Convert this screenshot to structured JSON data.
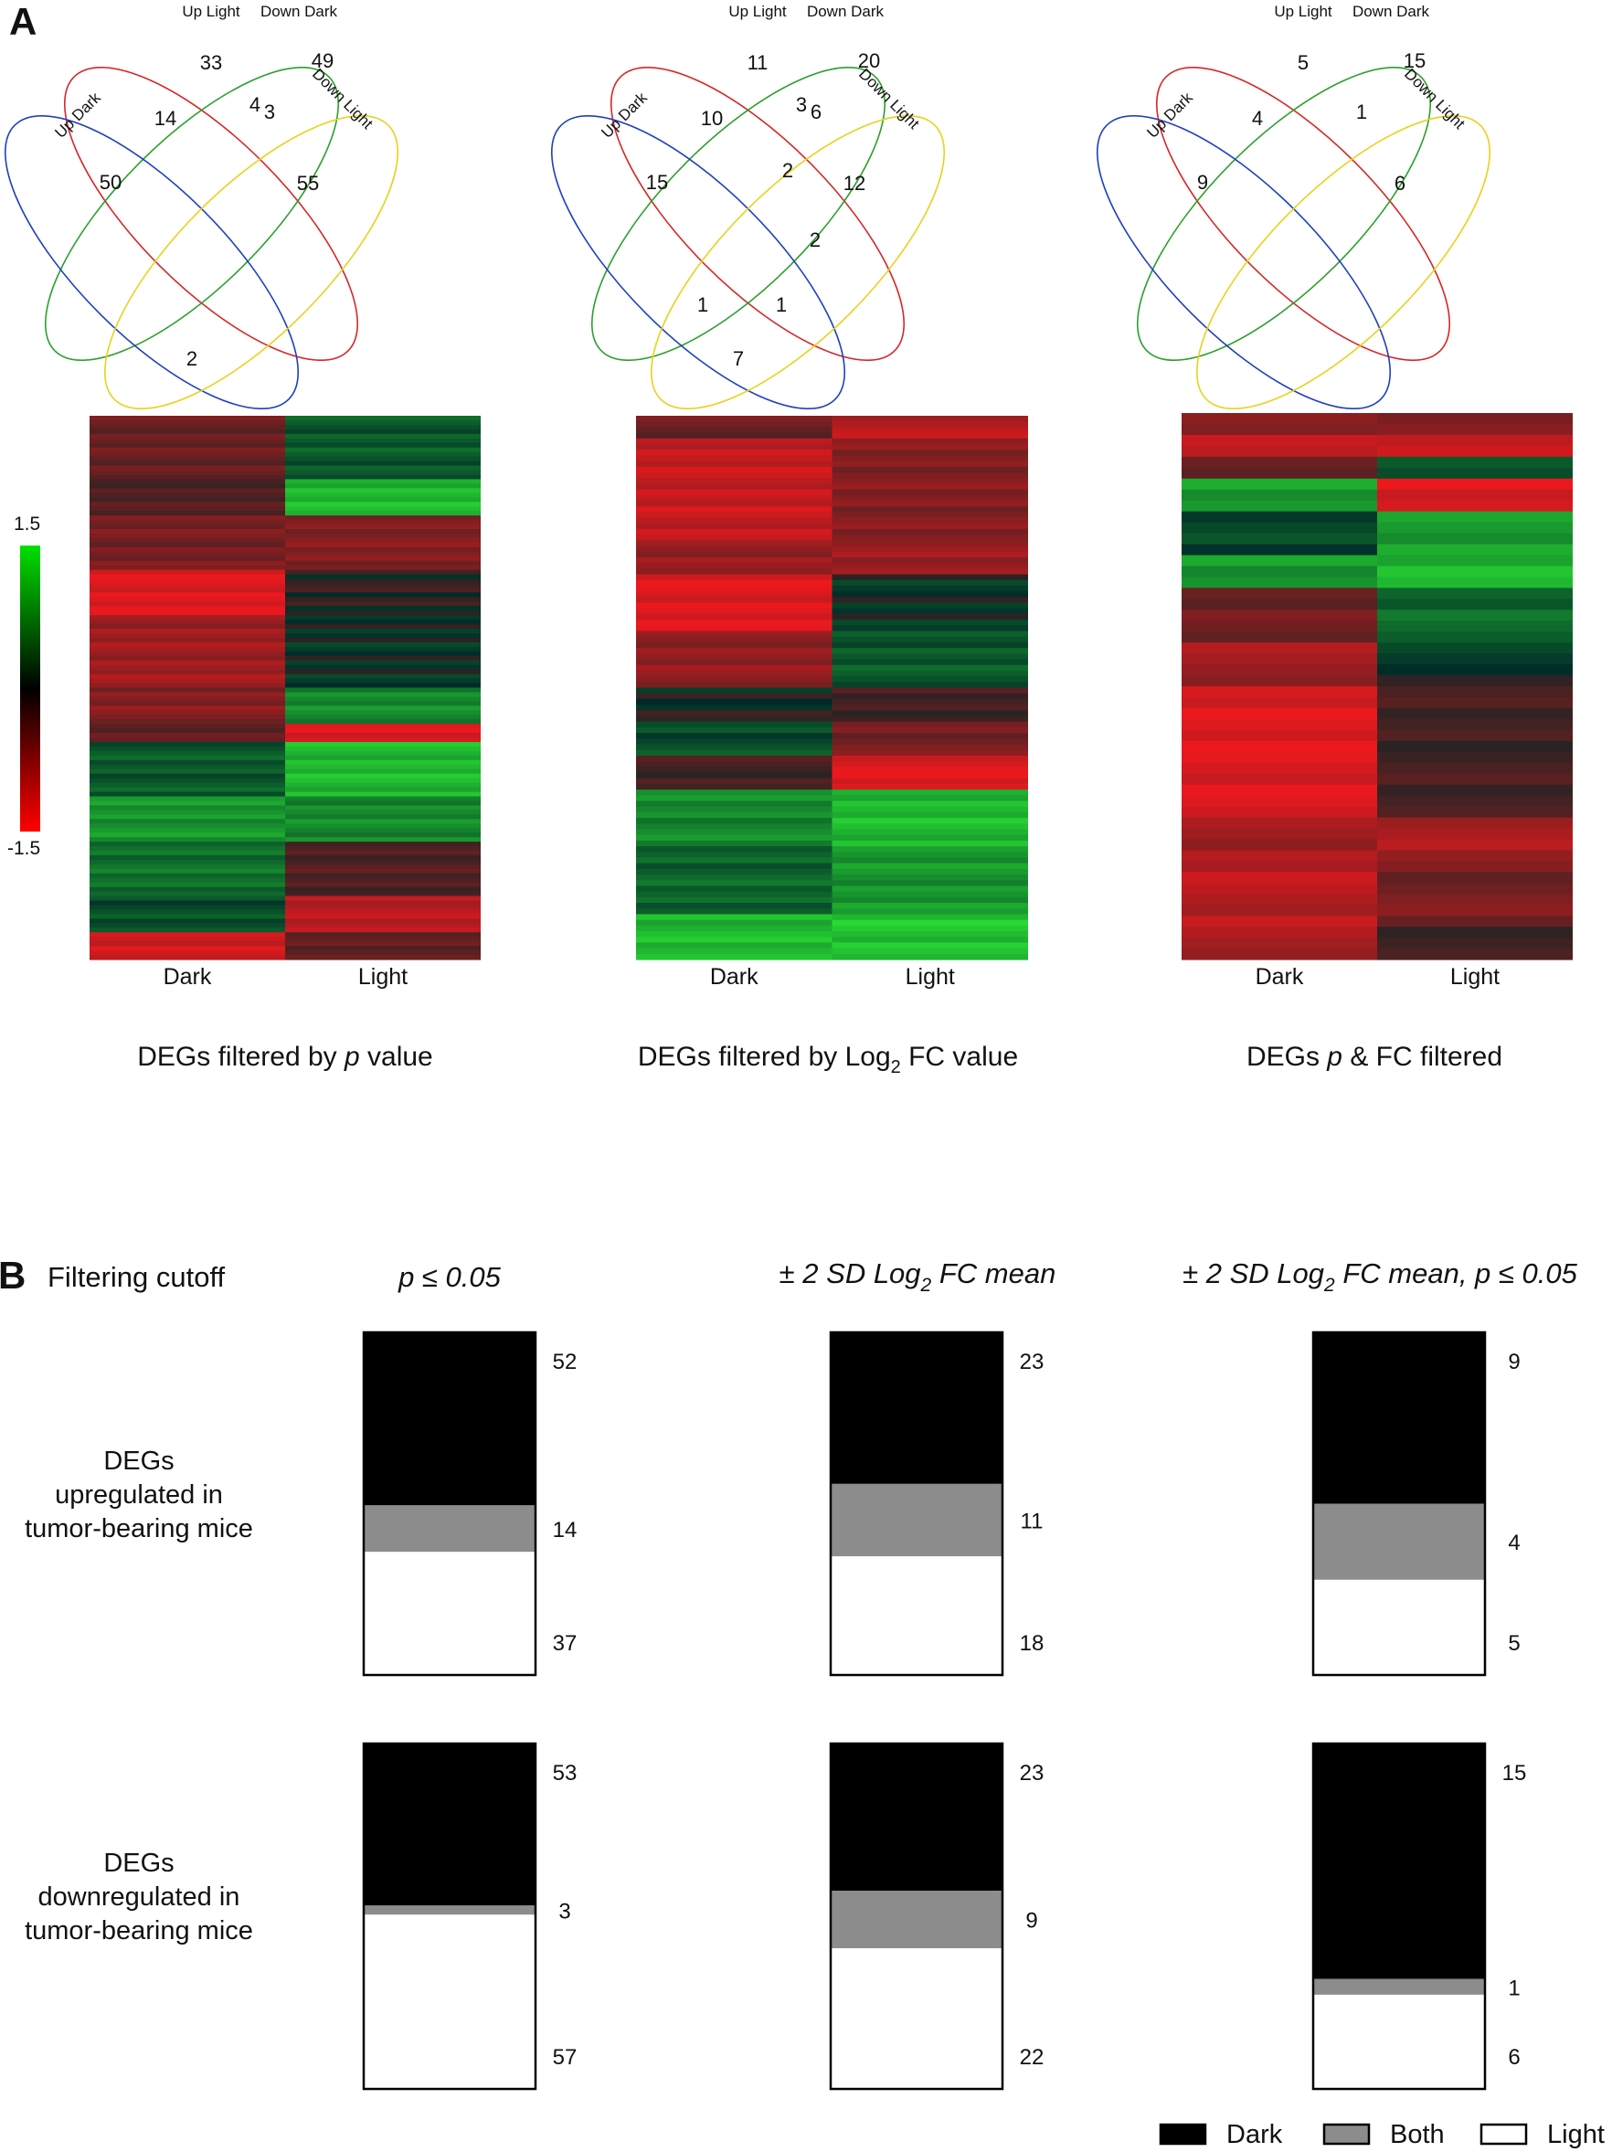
{
  "panel_a_label": "A",
  "panel_b_label": "B",
  "venn_set_labels": [
    "Up Light",
    "Down Dark",
    "Up Dark",
    "Down Light"
  ],
  "heatmap_columns": [
    "Dark",
    "Light"
  ],
  "colorbar": {
    "max_label": "1.5",
    "min_label": "-1.5",
    "max_value": 1.5,
    "min_value": -1.5,
    "colors": [
      "#00e000",
      "#000000",
      "#ff0000"
    ]
  },
  "panel_a": [
    {
      "caption_pre": "DEGs filtered by ",
      "caption_em": "p",
      "caption_post": " value",
      "caption_sub": ""
    },
    {
      "caption_pre": "DEGs filtered by Log",
      "caption_em": "",
      "caption_post": " FC value",
      "caption_sub": "2"
    },
    {
      "caption_pre": "DEGs ",
      "caption_em": "p",
      "caption_post": " & FC filtered",
      "caption_sub": ""
    }
  ],
  "panel_b": {
    "row_header": "Filtering cutoff",
    "row_labels": [
      [
        "DEGs",
        "upregulated in",
        "tumor-bearing mice"
      ],
      [
        "DEGs",
        "downregulated in",
        "tumor-bearing mice"
      ]
    ],
    "column_headers": [
      {
        "pre": "p ≤ 0.05",
        "sub": "",
        "post": ""
      },
      {
        "pre": "± 2 SD Log",
        "sub": "2",
        "post": " FC mean"
      },
      {
        "pre": "± 2 SD Log",
        "sub": "2",
        "post": " FC mean, p ≤ 0.05"
      }
    ],
    "legend": [
      "Dark",
      "Both",
      "Light"
    ]
  },
  "chart_data": [
    {
      "type": "venn",
      "title": "DEGs filtered by p value",
      "sets": [
        "Up Light",
        "Down Dark",
        "Up Dark",
        "Down Light"
      ],
      "regions": [
        {
          "sets": [
            "Up Light"
          ],
          "value": 33
        },
        {
          "sets": [
            "Down Dark"
          ],
          "value": 49
        },
        {
          "sets": [
            "Up Dark"
          ],
          "value": 50
        },
        {
          "sets": [
            "Down Light"
          ],
          "value": 55
        },
        {
          "sets": [
            "Up Dark",
            "Up Light"
          ],
          "value": 14
        },
        {
          "sets": [
            "Up Light",
            "Down Dark"
          ],
          "value": 4
        },
        {
          "sets": [
            "Down Dark",
            "Down Light"
          ],
          "value": 3
        },
        {
          "sets": [
            "Up Dark",
            "Down Light"
          ],
          "value": 2
        }
      ]
    },
    {
      "type": "venn",
      "title": "DEGs filtered by Log2 FC value",
      "sets": [
        "Up Light",
        "Down Dark",
        "Up Dark",
        "Down Light"
      ],
      "regions": [
        {
          "sets": [
            "Up Light"
          ],
          "value": 11
        },
        {
          "sets": [
            "Down Dark"
          ],
          "value": 20
        },
        {
          "sets": [
            "Up Dark"
          ],
          "value": 15
        },
        {
          "sets": [
            "Down Light"
          ],
          "value": 12
        },
        {
          "sets": [
            "Up Dark",
            "Up Light"
          ],
          "value": 10
        },
        {
          "sets": [
            "Up Light",
            "Down Dark"
          ],
          "value": 3
        },
        {
          "sets": [
            "Down Dark",
            "Down Light"
          ],
          "value": 6
        },
        {
          "sets": [
            "Up Light",
            "Down Light"
          ],
          "value": 2
        },
        {
          "sets": [
            "Up Light",
            "Down Dark",
            "Down Light"
          ],
          "value": 2
        },
        {
          "sets": [
            "Up Dark",
            "Down Light",
            "Down Dark"
          ],
          "value": 1
        },
        {
          "sets": [
            "Up Dark",
            "Down Light",
            "Up Light"
          ],
          "value": 1
        },
        {
          "sets": [
            "Up Dark",
            "Down Light"
          ],
          "value": 7
        }
      ]
    },
    {
      "type": "venn",
      "title": "DEGs p & FC filtered",
      "sets": [
        "Up Light",
        "Down Dark",
        "Up Dark",
        "Down Light"
      ],
      "regions": [
        {
          "sets": [
            "Up Light"
          ],
          "value": 5
        },
        {
          "sets": [
            "Down Dark"
          ],
          "value": 15
        },
        {
          "sets": [
            "Up Dark"
          ],
          "value": 9
        },
        {
          "sets": [
            "Down Light"
          ],
          "value": 6
        },
        {
          "sets": [
            "Up Dark",
            "Up Light"
          ],
          "value": 4
        },
        {
          "sets": [
            "Down Dark",
            "Down Light"
          ],
          "value": 1
        }
      ]
    },
    {
      "type": "heatmap",
      "title": "DEGs filtered by p value",
      "columns": [
        "Dark",
        "Light"
      ],
      "color_range": [
        -1.5,
        1.5
      ],
      "blocks": [
        {
          "rows": 14,
          "dark": -0.5,
          "light": 0.4
        },
        {
          "rows": 8,
          "dark": -0.3,
          "light": 1.2
        },
        {
          "rows": 12,
          "dark": -0.6,
          "light": -0.7
        },
        {
          "rows": 10,
          "dark": -1.4,
          "light": -0.1
        },
        {
          "rows": 16,
          "dark": -0.9,
          "light": 0.1
        },
        {
          "rows": 8,
          "dark": -0.7,
          "light": 0.8
        },
        {
          "rows": 4,
          "dark": -0.4,
          "light": -1.4
        },
        {
          "rows": 12,
          "dark": 0.4,
          "light": 1.2
        },
        {
          "rows": 10,
          "dark": 0.9,
          "light": 0.8
        },
        {
          "rows": 12,
          "dark": 0.6,
          "light": -0.3
        },
        {
          "rows": 8,
          "dark": 0.3,
          "light": -1.1
        },
        {
          "rows": 6,
          "dark": -1.3,
          "light": -0.4
        }
      ]
    },
    {
      "type": "heatmap",
      "title": "DEGs filtered by Log2 FC value",
      "columns": [
        "Dark",
        "Light"
      ],
      "color_range": [
        -1.5,
        1.5
      ],
      "blocks": [
        {
          "rows": 4,
          "dark": -0.5,
          "light": -1.1
        },
        {
          "rows": 18,
          "dark": -1.2,
          "light": -0.7
        },
        {
          "rows": 6,
          "dark": -0.8,
          "light": -0.9
        },
        {
          "rows": 10,
          "dark": -1.4,
          "light": 0.1
        },
        {
          "rows": 10,
          "dark": -0.8,
          "light": 0.4
        },
        {
          "rows": 6,
          "dark": 0.0,
          "light": -0.2
        },
        {
          "rows": 6,
          "dark": 0.3,
          "light": -0.6
        },
        {
          "rows": 6,
          "dark": -0.2,
          "light": -1.4
        },
        {
          "rows": 10,
          "dark": 0.8,
          "light": 1.2
        },
        {
          "rows": 12,
          "dark": 0.5,
          "light": 0.9
        },
        {
          "rows": 8,
          "dark": 1.2,
          "light": 1.3
        }
      ]
    },
    {
      "type": "heatmap",
      "title": "DEGs p & FC filtered",
      "columns": [
        "Dark",
        "Light"
      ],
      "color_range": [
        -1.5,
        1.5
      ],
      "blocks": [
        {
          "rows": 2,
          "dark": -0.6,
          "light": -0.8
        },
        {
          "rows": 2,
          "dark": -1.3,
          "light": -1.1
        },
        {
          "rows": 2,
          "dark": -0.4,
          "light": 0.3
        },
        {
          "rows": 3,
          "dark": 1.0,
          "light": -1.4
        },
        {
          "rows": 4,
          "dark": 0.2,
          "light": 1.0
        },
        {
          "rows": 3,
          "dark": 0.9,
          "light": 1.2
        },
        {
          "rows": 5,
          "dark": -0.5,
          "light": 0.5
        },
        {
          "rows": 4,
          "dark": -0.9,
          "light": 0.1
        },
        {
          "rows": 12,
          "dark": -1.4,
          "light": -0.2
        },
        {
          "rows": 4,
          "dark": -0.9,
          "light": -1.0
        },
        {
          "rows": 6,
          "dark": -1.1,
          "light": -0.6
        },
        {
          "rows": 3,
          "dark": -1.0,
          "light": -0.1
        }
      ]
    },
    {
      "type": "stacked_bar",
      "title": "p ≤ 0.05",
      "series": [
        "Dark",
        "Both",
        "Light"
      ],
      "colors": [
        "#000000",
        "#8c8c8c",
        "#ffffff"
      ],
      "rows": [
        {
          "label": "DEGs upregulated in tumor-bearing mice",
          "values": [
            52,
            14,
            37
          ]
        },
        {
          "label": "DEGs downregulated in tumor-bearing mice",
          "values": [
            53,
            3,
            57
          ]
        }
      ]
    },
    {
      "type": "stacked_bar",
      "title": "± 2 SD Log2 FC mean",
      "series": [
        "Dark",
        "Both",
        "Light"
      ],
      "colors": [
        "#000000",
        "#8c8c8c",
        "#ffffff"
      ],
      "rows": [
        {
          "label": "DEGs upregulated in tumor-bearing mice",
          "values": [
            23,
            11,
            18
          ]
        },
        {
          "label": "DEGs downregulated in tumor-bearing mice",
          "values": [
            23,
            9,
            22
          ]
        }
      ]
    },
    {
      "type": "stacked_bar",
      "title": "± 2 SD Log2 FC mean, p ≤ 0.05",
      "series": [
        "Dark",
        "Both",
        "Light"
      ],
      "colors": [
        "#000000",
        "#8c8c8c",
        "#ffffff"
      ],
      "rows": [
        {
          "label": "DEGs upregulated in tumor-bearing mice",
          "values": [
            9,
            4,
            5
          ]
        },
        {
          "label": "DEGs downregulated in tumor-bearing mice",
          "values": [
            15,
            1,
            6
          ]
        }
      ]
    }
  ]
}
